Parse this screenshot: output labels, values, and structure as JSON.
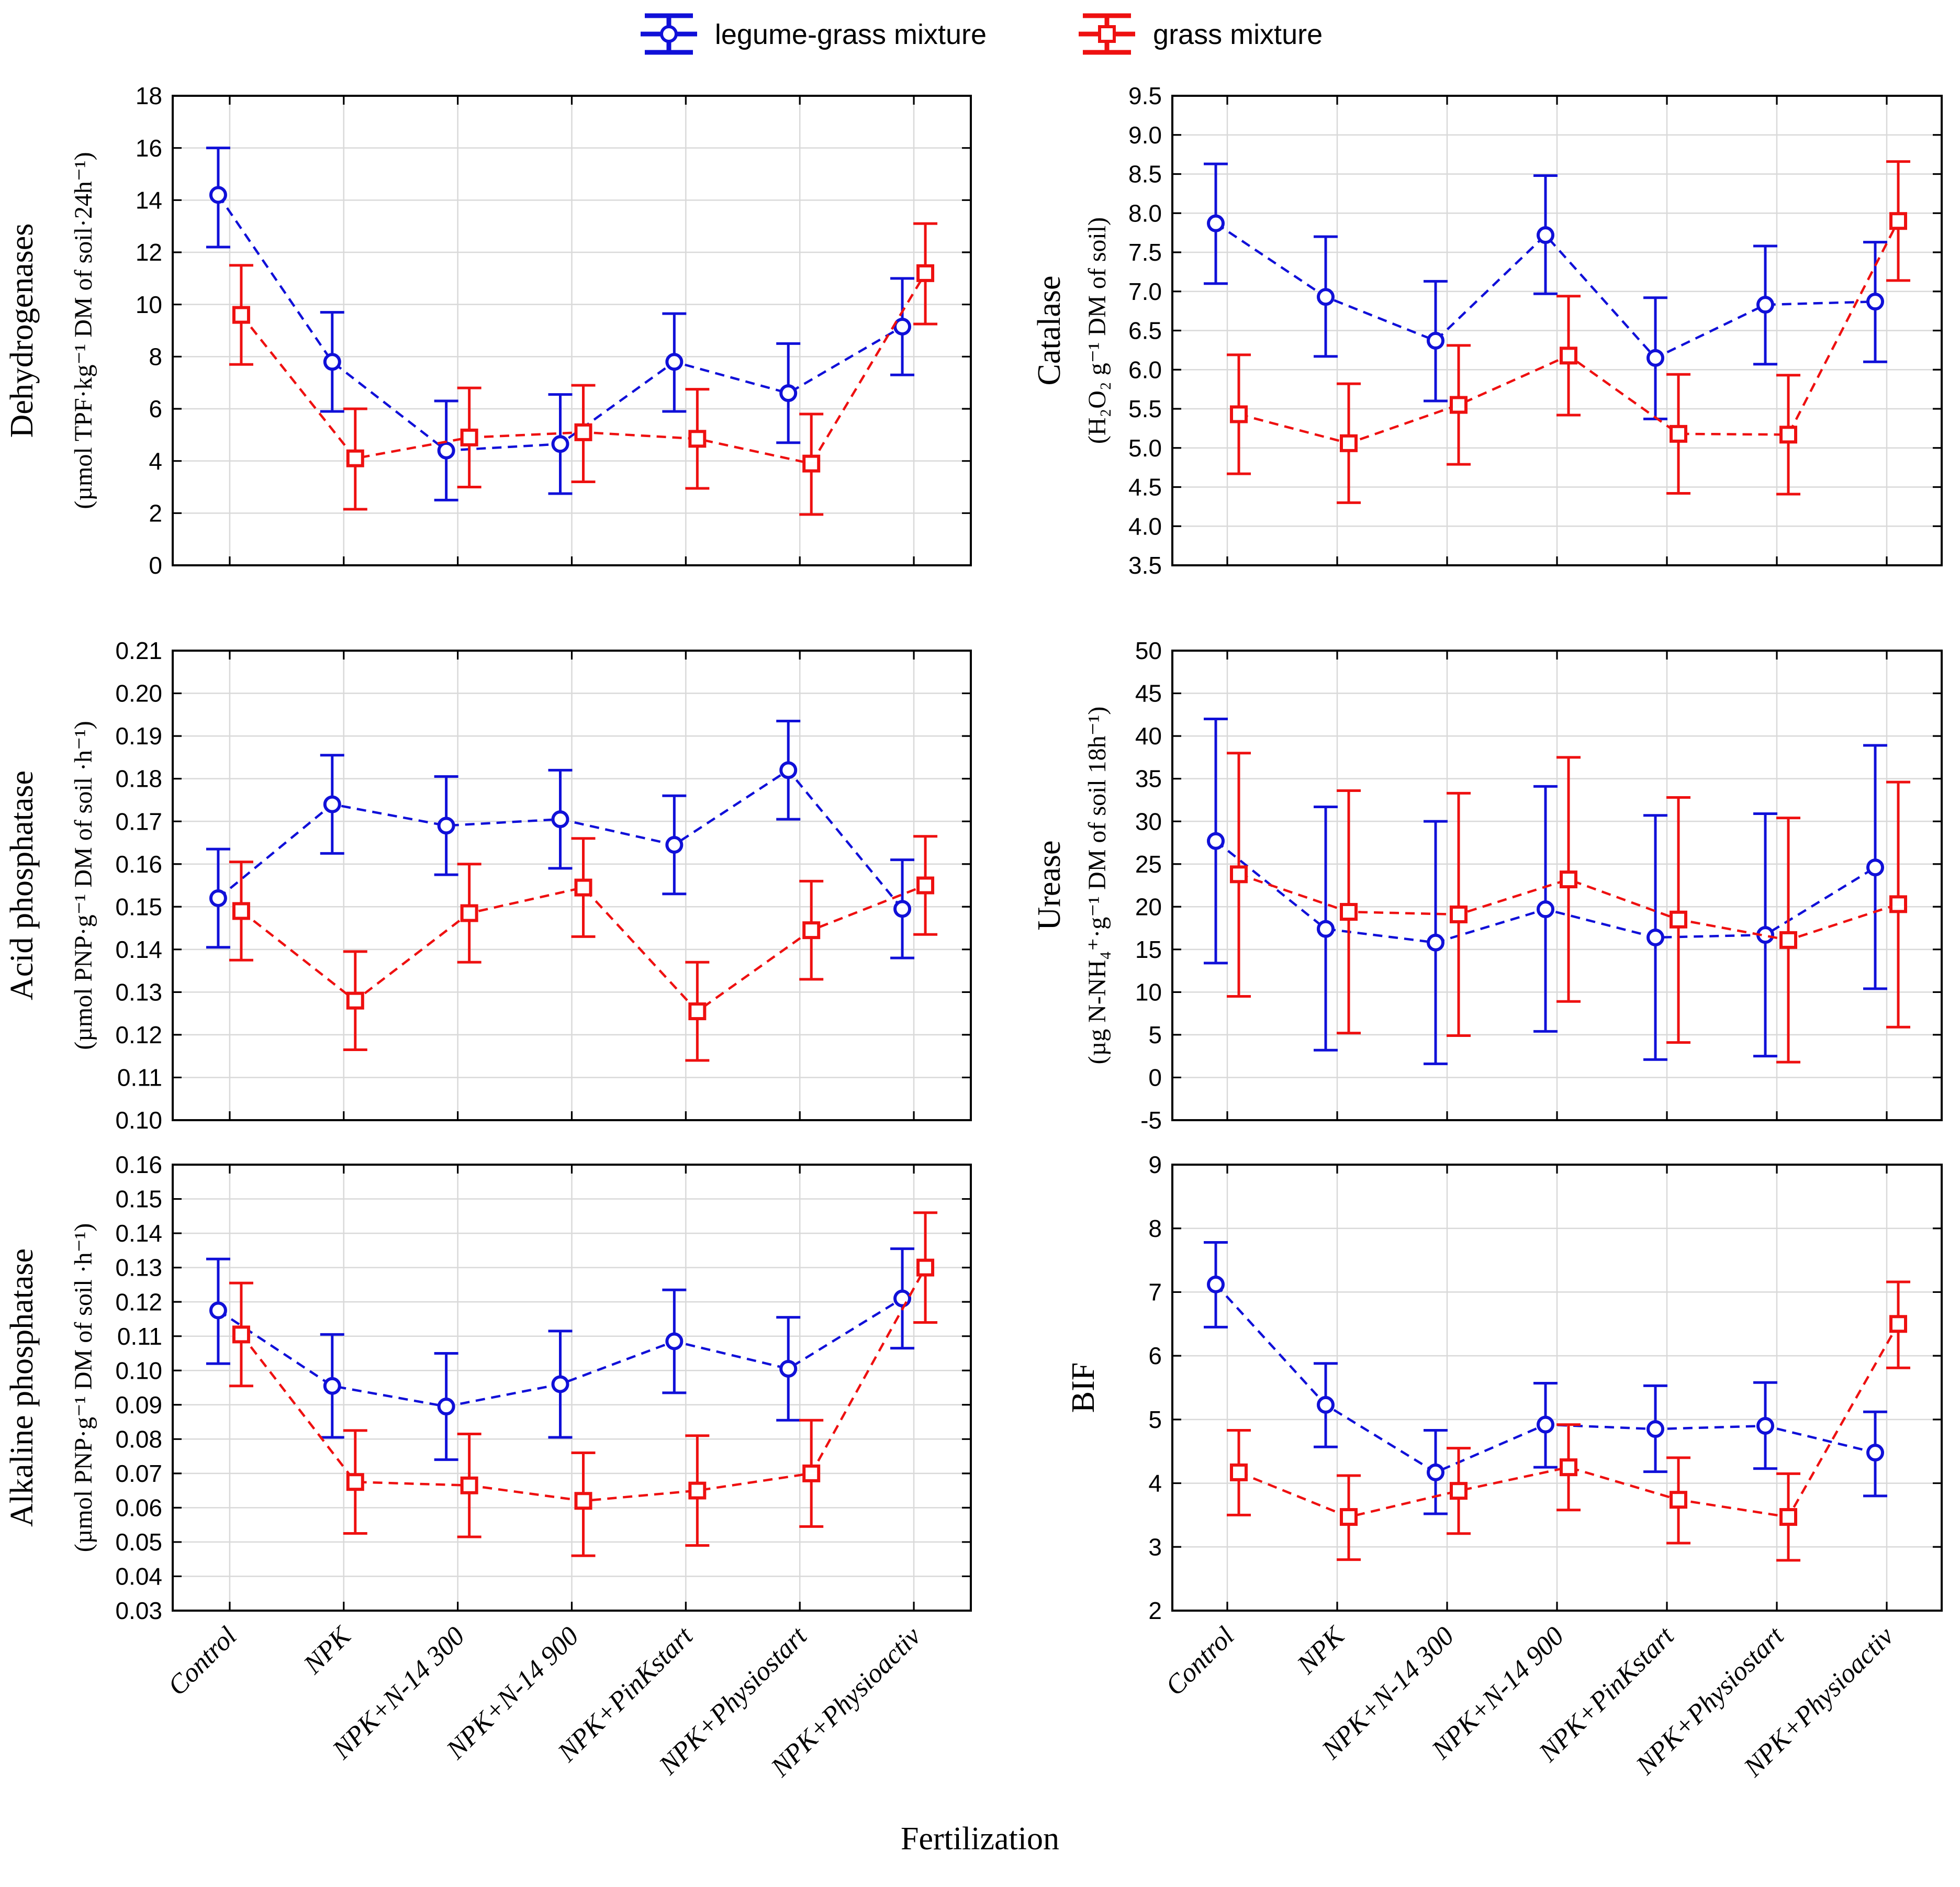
{
  "legend": {
    "items": [
      {
        "label": "legume-grass mixture",
        "color": "#1010d8",
        "marker": "circle"
      },
      {
        "label": "grass mixture",
        "color": "#ee1010",
        "marker": "square"
      }
    ]
  },
  "xlabel": "Fertilization",
  "categories": [
    "Control",
    "NPK",
    "NPK+N-14 300",
    "NPK+N-14 900",
    "NPK+PinKstart",
    "NPK+Physiostart",
    "NPK+Physioactiv"
  ],
  "colors": {
    "legume_grass": "#1010d8",
    "grass": "#ee1010",
    "grid": "#d9d9d9",
    "axis": "#000000"
  },
  "chart_data": [
    {
      "type": "line",
      "title": "Dehydrogenases",
      "ylabel": "Dehydrogenases",
      "yunit": "(µmol TPF·kg⁻¹ DM of soil·24h⁻¹)",
      "ylim": [
        0,
        18
      ],
      "ytick_step": 2,
      "ytick_decimals": 0,
      "grid": true,
      "legend_position": "top-center",
      "series": [
        {
          "name": "legume-grass mixture",
          "values": [
            14.2,
            7.8,
            4.4,
            4.65,
            7.8,
            6.6,
            9.15
          ],
          "lower": [
            12.2,
            5.9,
            2.5,
            2.75,
            5.9,
            4.7,
            7.3
          ],
          "upper": [
            16.0,
            9.7,
            6.3,
            6.55,
            9.65,
            8.5,
            11.0
          ]
        },
        {
          "name": "grass mixture",
          "values": [
            9.6,
            4.1,
            4.9,
            5.1,
            4.85,
            3.9,
            11.2
          ],
          "lower": [
            7.7,
            2.15,
            3.0,
            3.2,
            2.95,
            1.95,
            9.25
          ],
          "upper": [
            11.5,
            6.0,
            6.8,
            6.9,
            6.75,
            5.8,
            13.1
          ]
        }
      ]
    },
    {
      "type": "line",
      "title": "Catalase",
      "ylabel": "Catalase",
      "yunit": "(H₂O₂ g⁻¹ DM of soil)",
      "ylim": [
        3.5,
        9.5
      ],
      "ytick_step": 0.5,
      "ytick_decimals": 1,
      "grid": true,
      "series": [
        {
          "name": "legume-grass mixture",
          "values": [
            7.87,
            6.93,
            6.37,
            7.72,
            6.15,
            6.83,
            6.87
          ],
          "lower": [
            7.1,
            6.17,
            5.6,
            6.97,
            5.37,
            6.07,
            6.1
          ],
          "upper": [
            8.63,
            7.7,
            7.13,
            8.48,
            6.92,
            7.58,
            7.63
          ]
        },
        {
          "name": "grass mixture",
          "values": [
            5.43,
            5.06,
            5.55,
            6.18,
            5.18,
            5.17,
            7.9
          ],
          "lower": [
            4.67,
            4.3,
            4.79,
            5.42,
            4.42,
            4.41,
            7.14
          ],
          "upper": [
            6.19,
            5.82,
            6.31,
            6.94,
            5.94,
            5.93,
            8.66
          ]
        }
      ]
    },
    {
      "type": "line",
      "title": "Acid phosphatase",
      "ylabel": "Acid phosphatase",
      "yunit": "(µmol PNP·g⁻¹ DM of soil ·h⁻¹)",
      "ylim": [
        0.1,
        0.21
      ],
      "ytick_step": 0.01,
      "ytick_decimals": 2,
      "grid": true,
      "series": [
        {
          "name": "legume-grass mixture",
          "values": [
            0.152,
            0.174,
            0.169,
            0.1705,
            0.1645,
            0.182,
            0.1495
          ],
          "lower": [
            0.1405,
            0.1625,
            0.1575,
            0.159,
            0.153,
            0.1705,
            0.138
          ],
          "upper": [
            0.1635,
            0.1855,
            0.1805,
            0.182,
            0.176,
            0.1935,
            0.161
          ]
        },
        {
          "name": "grass mixture",
          "values": [
            0.149,
            0.128,
            0.1485,
            0.1545,
            0.1255,
            0.1445,
            0.155
          ],
          "lower": [
            0.1375,
            0.1165,
            0.137,
            0.143,
            0.114,
            0.133,
            0.1435
          ],
          "upper": [
            0.1605,
            0.1395,
            0.16,
            0.166,
            0.137,
            0.156,
            0.1665
          ]
        }
      ]
    },
    {
      "type": "line",
      "title": "Urease",
      "ylabel": "Urease",
      "yunit": "(µg N-NH₄⁺·g⁻¹ DM of soil 18h⁻¹)",
      "ylim": [
        -5,
        50
      ],
      "ytick_step": 5,
      "ytick_decimals": 0,
      "grid": true,
      "series": [
        {
          "name": "legume-grass mixture",
          "values": [
            27.7,
            17.4,
            15.8,
            19.7,
            16.4,
            16.7,
            24.6
          ],
          "lower": [
            13.4,
            3.2,
            1.6,
            5.4,
            2.1,
            2.5,
            10.4
          ],
          "upper": [
            42.0,
            31.7,
            30.0,
            34.1,
            30.7,
            30.9,
            38.9
          ]
        },
        {
          "name": "grass mixture",
          "values": [
            23.8,
            19.4,
            19.1,
            23.2,
            18.5,
            16.1,
            20.3
          ],
          "lower": [
            9.5,
            5.2,
            4.9,
            8.9,
            4.1,
            1.8,
            5.9
          ],
          "upper": [
            38.0,
            33.6,
            33.3,
            37.5,
            32.8,
            30.4,
            34.6
          ]
        }
      ]
    },
    {
      "type": "line",
      "title": "Alkaline phosphatase",
      "ylabel": "Alkaline phosphatase",
      "yunit": "(µmol PNP·g⁻¹ DM of soil ·h⁻¹)",
      "ylim": [
        0.03,
        0.16
      ],
      "ytick_step": 0.01,
      "ytick_decimals": 2,
      "grid": true,
      "series": [
        {
          "name": "legume-grass mixture",
          "values": [
            0.1175,
            0.0955,
            0.0895,
            0.096,
            0.1085,
            0.1005,
            0.121
          ],
          "lower": [
            0.102,
            0.0805,
            0.074,
            0.0805,
            0.0935,
            0.0855,
            0.1065
          ],
          "upper": [
            0.1325,
            0.1105,
            0.105,
            0.1115,
            0.1235,
            0.1155,
            0.1355
          ]
        },
        {
          "name": "grass mixture",
          "values": [
            0.1105,
            0.0675,
            0.0665,
            0.062,
            0.065,
            0.07,
            0.13
          ],
          "lower": [
            0.0955,
            0.0525,
            0.0515,
            0.046,
            0.049,
            0.0545,
            0.114
          ],
          "upper": [
            0.1255,
            0.0825,
            0.0815,
            0.076,
            0.081,
            0.0855,
            0.146
          ]
        }
      ]
    },
    {
      "type": "line",
      "title": "BIF",
      "ylabel": "BIF",
      "yunit": "",
      "ylim": [
        2,
        9
      ],
      "ytick_step": 1,
      "ytick_decimals": 0,
      "grid": true,
      "series": [
        {
          "name": "legume-grass mixture",
          "values": [
            7.12,
            5.23,
            4.17,
            4.92,
            4.85,
            4.9,
            4.48
          ],
          "lower": [
            6.45,
            4.57,
            3.52,
            4.25,
            4.18,
            4.23,
            3.8
          ],
          "upper": [
            7.78,
            5.88,
            4.83,
            5.57,
            5.53,
            5.58,
            5.12
          ]
        },
        {
          "name": "grass mixture",
          "values": [
            4.17,
            3.47,
            3.88,
            4.25,
            3.74,
            3.47,
            6.5
          ],
          "lower": [
            3.5,
            2.8,
            3.21,
            3.58,
            3.06,
            2.79,
            5.81
          ],
          "upper": [
            4.83,
            4.12,
            4.55,
            4.92,
            4.4,
            4.15,
            7.16
          ]
        }
      ]
    }
  ]
}
